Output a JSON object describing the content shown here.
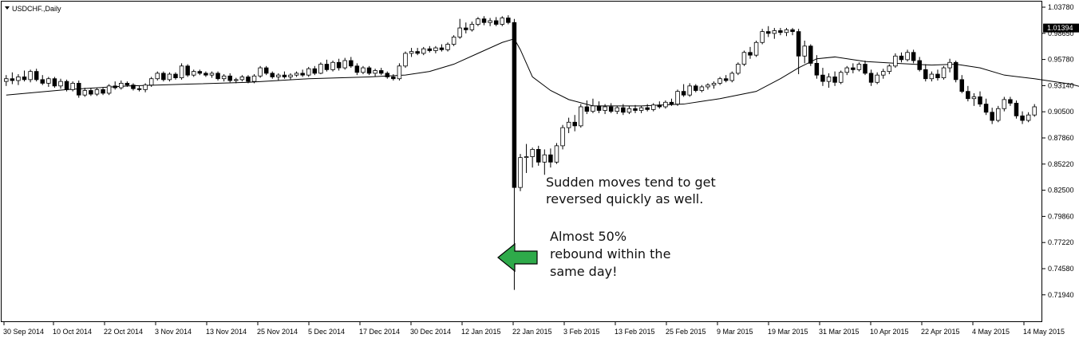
{
  "chart_data": {
    "type": "candlestick",
    "title": "USDCHF.,Daily",
    "y_ticks": [
      "1.03780",
      "0.98650",
      "0.95780",
      "0.93140",
      "0.90500",
      "0.87860",
      "0.85220",
      "0.82500",
      "0.79860",
      "0.77220",
      "0.74580",
      "0.71940"
    ],
    "current_price_label": "1.01394",
    "current_price": 1.01394,
    "x_ticks": [
      "30 Sep 2014",
      "10 Oct 2014",
      "22 Oct 2014",
      "3 Nov 2014",
      "13 Nov 2014",
      "25 Nov 2014",
      "5 Dec 2014",
      "17 Dec 2014",
      "30 Dec 2014",
      "12 Jan 2015",
      "22 Jan 2015",
      "3 Feb 2015",
      "13 Feb 2015",
      "25 Feb 2015",
      "9 Mar 2015",
      "19 Mar 2015",
      "31 Mar 2015",
      "10 Apr 2015",
      "22 Apr 2015",
      "4 May 2015",
      "14 May 2015"
    ],
    "ylim": [
      0.7194,
      1.0378
    ],
    "grid": false,
    "candles": [
      {
        "o": 0.955,
        "h": 0.962,
        "l": 0.95,
        "c": 0.958
      },
      {
        "o": 0.958,
        "h": 0.965,
        "l": 0.952,
        "c": 0.956
      },
      {
        "o": 0.956,
        "h": 0.963,
        "l": 0.951,
        "c": 0.96
      },
      {
        "o": 0.96,
        "h": 0.967,
        "l": 0.955,
        "c": 0.957
      },
      {
        "o": 0.957,
        "h": 0.968,
        "l": 0.954,
        "c": 0.966
      },
      {
        "o": 0.966,
        "h": 0.969,
        "l": 0.955,
        "c": 0.957
      },
      {
        "o": 0.957,
        "h": 0.962,
        "l": 0.951,
        "c": 0.953
      },
      {
        "o": 0.953,
        "h": 0.96,
        "l": 0.949,
        "c": 0.958
      },
      {
        "o": 0.958,
        "h": 0.96,
        "l": 0.948,
        "c": 0.95
      },
      {
        "o": 0.95,
        "h": 0.958,
        "l": 0.947,
        "c": 0.955
      },
      {
        "o": 0.955,
        "h": 0.957,
        "l": 0.944,
        "c": 0.946
      },
      {
        "o": 0.946,
        "h": 0.955,
        "l": 0.944,
        "c": 0.953
      },
      {
        "o": 0.953,
        "h": 0.956,
        "l": 0.937,
        "c": 0.94
      },
      {
        "o": 0.94,
        "h": 0.948,
        "l": 0.938,
        "c": 0.945
      },
      {
        "o": 0.945,
        "h": 0.948,
        "l": 0.939,
        "c": 0.941
      },
      {
        "o": 0.941,
        "h": 0.948,
        "l": 0.939,
        "c": 0.946
      },
      {
        "o": 0.946,
        "h": 0.948,
        "l": 0.94,
        "c": 0.942
      },
      {
        "o": 0.942,
        "h": 0.952,
        "l": 0.94,
        "c": 0.95
      },
      {
        "o": 0.95,
        "h": 0.955,
        "l": 0.946,
        "c": 0.948
      },
      {
        "o": 0.948,
        "h": 0.956,
        "l": 0.946,
        "c": 0.953
      },
      {
        "o": 0.953,
        "h": 0.955,
        "l": 0.949,
        "c": 0.951
      },
      {
        "o": 0.951,
        "h": 0.953,
        "l": 0.945,
        "c": 0.947
      },
      {
        "o": 0.947,
        "h": 0.95,
        "l": 0.944,
        "c": 0.946
      },
      {
        "o": 0.946,
        "h": 0.953,
        "l": 0.943,
        "c": 0.951
      },
      {
        "o": 0.951,
        "h": 0.96,
        "l": 0.949,
        "c": 0.958
      },
      {
        "o": 0.958,
        "h": 0.966,
        "l": 0.956,
        "c": 0.964
      },
      {
        "o": 0.964,
        "h": 0.966,
        "l": 0.955,
        "c": 0.957
      },
      {
        "o": 0.957,
        "h": 0.965,
        "l": 0.955,
        "c": 0.963
      },
      {
        "o": 0.963,
        "h": 0.965,
        "l": 0.957,
        "c": 0.959
      },
      {
        "o": 0.959,
        "h": 0.975,
        "l": 0.957,
        "c": 0.972
      },
      {
        "o": 0.972,
        "h": 0.974,
        "l": 0.96,
        "c": 0.962
      },
      {
        "o": 0.962,
        "h": 0.968,
        "l": 0.96,
        "c": 0.966
      },
      {
        "o": 0.966,
        "h": 0.968,
        "l": 0.962,
        "c": 0.964
      },
      {
        "o": 0.964,
        "h": 0.966,
        "l": 0.96,
        "c": 0.962
      },
      {
        "o": 0.962,
        "h": 0.966,
        "l": 0.959,
        "c": 0.964
      },
      {
        "o": 0.964,
        "h": 0.966,
        "l": 0.956,
        "c": 0.958
      },
      {
        "o": 0.958,
        "h": 0.963,
        "l": 0.955,
        "c": 0.961
      },
      {
        "o": 0.961,
        "h": 0.964,
        "l": 0.954,
        "c": 0.956
      },
      {
        "o": 0.956,
        "h": 0.959,
        "l": 0.953,
        "c": 0.957
      },
      {
        "o": 0.957,
        "h": 0.962,
        "l": 0.955,
        "c": 0.96
      },
      {
        "o": 0.96,
        "h": 0.962,
        "l": 0.953,
        "c": 0.955
      },
      {
        "o": 0.955,
        "h": 0.963,
        "l": 0.953,
        "c": 0.961
      },
      {
        "o": 0.961,
        "h": 0.972,
        "l": 0.959,
        "c": 0.97
      },
      {
        "o": 0.97,
        "h": 0.972,
        "l": 0.962,
        "c": 0.964
      },
      {
        "o": 0.964,
        "h": 0.966,
        "l": 0.958,
        "c": 0.96
      },
      {
        "o": 0.96,
        "h": 0.964,
        "l": 0.956,
        "c": 0.962
      },
      {
        "o": 0.962,
        "h": 0.966,
        "l": 0.958,
        "c": 0.96
      },
      {
        "o": 0.96,
        "h": 0.964,
        "l": 0.957,
        "c": 0.962
      },
      {
        "o": 0.962,
        "h": 0.966,
        "l": 0.96,
        "c": 0.964
      },
      {
        "o": 0.964,
        "h": 0.968,
        "l": 0.96,
        "c": 0.962
      },
      {
        "o": 0.962,
        "h": 0.971,
        "l": 0.96,
        "c": 0.969
      },
      {
        "o": 0.969,
        "h": 0.972,
        "l": 0.962,
        "c": 0.964
      },
      {
        "o": 0.964,
        "h": 0.976,
        "l": 0.963,
        "c": 0.974
      },
      {
        "o": 0.974,
        "h": 0.979,
        "l": 0.966,
        "c": 0.968
      },
      {
        "o": 0.968,
        "h": 0.978,
        "l": 0.966,
        "c": 0.976
      },
      {
        "o": 0.976,
        "h": 0.98,
        "l": 0.967,
        "c": 0.97
      },
      {
        "o": 0.97,
        "h": 0.981,
        "l": 0.968,
        "c": 0.978
      },
      {
        "o": 0.978,
        "h": 0.982,
        "l": 0.97,
        "c": 0.972
      },
      {
        "o": 0.972,
        "h": 0.975,
        "l": 0.962,
        "c": 0.965
      },
      {
        "o": 0.965,
        "h": 0.972,
        "l": 0.963,
        "c": 0.97
      },
      {
        "o": 0.97,
        "h": 0.972,
        "l": 0.962,
        "c": 0.964
      },
      {
        "o": 0.964,
        "h": 0.969,
        "l": 0.96,
        "c": 0.967
      },
      {
        "o": 0.967,
        "h": 0.97,
        "l": 0.962,
        "c": 0.964
      },
      {
        "o": 0.964,
        "h": 0.966,
        "l": 0.958,
        "c": 0.96
      },
      {
        "o": 0.96,
        "h": 0.963,
        "l": 0.956,
        "c": 0.958
      },
      {
        "o": 0.958,
        "h": 0.975,
        "l": 0.956,
        "c": 0.972
      },
      {
        "o": 0.972,
        "h": 0.988,
        "l": 0.97,
        "c": 0.986
      },
      {
        "o": 0.986,
        "h": 0.992,
        "l": 0.982,
        "c": 0.988
      },
      {
        "o": 0.988,
        "h": 0.992,
        "l": 0.984,
        "c": 0.986
      },
      {
        "o": 0.986,
        "h": 0.993,
        "l": 0.984,
        "c": 0.991
      },
      {
        "o": 0.991,
        "h": 0.994,
        "l": 0.987,
        "c": 0.989
      },
      {
        "o": 0.989,
        "h": 0.994,
        "l": 0.986,
        "c": 0.992
      },
      {
        "o": 0.992,
        "h": 0.996,
        "l": 0.988,
        "c": 0.99
      },
      {
        "o": 0.99,
        "h": 0.998,
        "l": 0.988,
        "c": 0.996
      },
      {
        "o": 0.996,
        "h": 1.006,
        "l": 0.994,
        "c": 1.004
      },
      {
        "o": 1.004,
        "h": 1.024,
        "l": 1.002,
        "c": 1.014
      },
      {
        "o": 1.014,
        "h": 1.02,
        "l": 1.008,
        "c": 1.012
      },
      {
        "o": 1.012,
        "h": 1.021,
        "l": 1.01,
        "c": 1.018
      },
      {
        "o": 1.018,
        "h": 1.026,
        "l": 1.016,
        "c": 1.024
      },
      {
        "o": 1.024,
        "h": 1.027,
        "l": 1.017,
        "c": 1.02
      },
      {
        "o": 1.02,
        "h": 1.025,
        "l": 1.016,
        "c": 1.022
      },
      {
        "o": 1.022,
        "h": 1.026,
        "l": 1.016,
        "c": 1.018
      },
      {
        "o": 1.018,
        "h": 1.027,
        "l": 1.016,
        "c": 1.025
      },
      {
        "o": 1.025,
        "h": 1.028,
        "l": 1.018,
        "c": 1.02
      },
      {
        "o": 1.02,
        "h": 1.024,
        "l": 0.725,
        "c": 0.838
      },
      {
        "o": 0.838,
        "h": 0.875,
        "l": 0.834,
        "c": 0.871
      },
      {
        "o": 0.871,
        "h": 0.886,
        "l": 0.854,
        "c": 0.872
      },
      {
        "o": 0.872,
        "h": 0.882,
        "l": 0.86,
        "c": 0.88
      },
      {
        "o": 0.88,
        "h": 0.884,
        "l": 0.862,
        "c": 0.866
      },
      {
        "o": 0.866,
        "h": 0.88,
        "l": 0.852,
        "c": 0.874
      },
      {
        "o": 0.874,
        "h": 0.881,
        "l": 0.86,
        "c": 0.866
      },
      {
        "o": 0.866,
        "h": 0.887,
        "l": 0.864,
        "c": 0.884
      },
      {
        "o": 0.884,
        "h": 0.907,
        "l": 0.88,
        "c": 0.904
      },
      {
        "o": 0.904,
        "h": 0.915,
        "l": 0.898,
        "c": 0.91
      },
      {
        "o": 0.91,
        "h": 0.918,
        "l": 0.9,
        "c": 0.906
      },
      {
        "o": 0.906,
        "h": 0.93,
        "l": 0.904,
        "c": 0.927
      },
      {
        "o": 0.927,
        "h": 0.934,
        "l": 0.919,
        "c": 0.922
      },
      {
        "o": 0.922,
        "h": 0.936,
        "l": 0.92,
        "c": 0.928
      },
      {
        "o": 0.928,
        "h": 0.933,
        "l": 0.92,
        "c": 0.923
      },
      {
        "o": 0.923,
        "h": 0.93,
        "l": 0.919,
        "c": 0.927
      },
      {
        "o": 0.927,
        "h": 0.931,
        "l": 0.92,
        "c": 0.922
      },
      {
        "o": 0.922,
        "h": 0.928,
        "l": 0.919,
        "c": 0.926
      },
      {
        "o": 0.926,
        "h": 0.93,
        "l": 0.918,
        "c": 0.921
      },
      {
        "o": 0.921,
        "h": 0.928,
        "l": 0.919,
        "c": 0.925
      },
      {
        "o": 0.925,
        "h": 0.929,
        "l": 0.92,
        "c": 0.923
      },
      {
        "o": 0.923,
        "h": 0.928,
        "l": 0.92,
        "c": 0.926
      },
      {
        "o": 0.926,
        "h": 0.93,
        "l": 0.922,
        "c": 0.924
      },
      {
        "o": 0.924,
        "h": 0.931,
        "l": 0.922,
        "c": 0.929
      },
      {
        "o": 0.929,
        "h": 0.933,
        "l": 0.925,
        "c": 0.927
      },
      {
        "o": 0.927,
        "h": 0.934,
        "l": 0.925,
        "c": 0.932
      },
      {
        "o": 0.932,
        "h": 0.936,
        "l": 0.928,
        "c": 0.93
      },
      {
        "o": 0.93,
        "h": 0.946,
        "l": 0.928,
        "c": 0.944
      },
      {
        "o": 0.944,
        "h": 0.952,
        "l": 0.938,
        "c": 0.94
      },
      {
        "o": 0.94,
        "h": 0.953,
        "l": 0.938,
        "c": 0.95
      },
      {
        "o": 0.95,
        "h": 0.952,
        "l": 0.943,
        "c": 0.945
      },
      {
        "o": 0.945,
        "h": 0.951,
        "l": 0.943,
        "c": 0.949
      },
      {
        "o": 0.949,
        "h": 0.953,
        "l": 0.946,
        "c": 0.951
      },
      {
        "o": 0.951,
        "h": 0.955,
        "l": 0.947,
        "c": 0.953
      },
      {
        "o": 0.953,
        "h": 0.96,
        "l": 0.951,
        "c": 0.958
      },
      {
        "o": 0.958,
        "h": 0.962,
        "l": 0.954,
        "c": 0.956
      },
      {
        "o": 0.956,
        "h": 0.966,
        "l": 0.954,
        "c": 0.964
      },
      {
        "o": 0.964,
        "h": 0.976,
        "l": 0.962,
        "c": 0.974
      },
      {
        "o": 0.974,
        "h": 0.989,
        "l": 0.972,
        "c": 0.987
      },
      {
        "o": 0.987,
        "h": 0.993,
        "l": 0.98,
        "c": 0.984
      },
      {
        "o": 0.984,
        "h": 1.0,
        "l": 0.982,
        "c": 0.998
      },
      {
        "o": 0.998,
        "h": 1.013,
        "l": 0.996,
        "c": 1.01
      },
      {
        "o": 1.01,
        "h": 1.016,
        "l": 1.004,
        "c": 1.008
      },
      {
        "o": 1.008,
        "h": 1.014,
        "l": 1.002,
        "c": 1.011
      },
      {
        "o": 1.011,
        "h": 1.014,
        "l": 1.006,
        "c": 1.009
      },
      {
        "o": 1.009,
        "h": 1.014,
        "l": 1.005,
        "c": 1.012
      },
      {
        "o": 1.012,
        "h": 1.014,
        "l": 1.006,
        "c": 1.01
      },
      {
        "o": 1.01,
        "h": 1.013,
        "l": 0.963,
        "c": 0.983
      },
      {
        "o": 0.983,
        "h": 1.0,
        "l": 0.975,
        "c": 0.994
      },
      {
        "o": 0.994,
        "h": 0.996,
        "l": 0.972,
        "c": 0.975
      },
      {
        "o": 0.975,
        "h": 0.984,
        "l": 0.958,
        "c": 0.962
      },
      {
        "o": 0.962,
        "h": 0.97,
        "l": 0.95,
        "c": 0.955
      },
      {
        "o": 0.955,
        "h": 0.964,
        "l": 0.948,
        "c": 0.96
      },
      {
        "o": 0.96,
        "h": 0.966,
        "l": 0.95,
        "c": 0.954
      },
      {
        "o": 0.954,
        "h": 0.967,
        "l": 0.952,
        "c": 0.965
      },
      {
        "o": 0.965,
        "h": 0.972,
        "l": 0.962,
        "c": 0.97
      },
      {
        "o": 0.97,
        "h": 0.975,
        "l": 0.964,
        "c": 0.968
      },
      {
        "o": 0.968,
        "h": 0.976,
        "l": 0.966,
        "c": 0.974
      },
      {
        "o": 0.974,
        "h": 0.978,
        "l": 0.962,
        "c": 0.964
      },
      {
        "o": 0.964,
        "h": 0.968,
        "l": 0.95,
        "c": 0.954
      },
      {
        "o": 0.954,
        "h": 0.965,
        "l": 0.952,
        "c": 0.962
      },
      {
        "o": 0.962,
        "h": 0.969,
        "l": 0.958,
        "c": 0.966
      },
      {
        "o": 0.966,
        "h": 0.974,
        "l": 0.963,
        "c": 0.972
      },
      {
        "o": 0.972,
        "h": 0.986,
        "l": 0.97,
        "c": 0.983
      },
      {
        "o": 0.983,
        "h": 0.987,
        "l": 0.976,
        "c": 0.979
      },
      {
        "o": 0.979,
        "h": 0.99,
        "l": 0.977,
        "c": 0.987
      },
      {
        "o": 0.987,
        "h": 0.99,
        "l": 0.975,
        "c": 0.978
      },
      {
        "o": 0.978,
        "h": 0.982,
        "l": 0.966,
        "c": 0.968
      },
      {
        "o": 0.968,
        "h": 0.974,
        "l": 0.955,
        "c": 0.958
      },
      {
        "o": 0.958,
        "h": 0.966,
        "l": 0.955,
        "c": 0.963
      },
      {
        "o": 0.963,
        "h": 0.968,
        "l": 0.956,
        "c": 0.959
      },
      {
        "o": 0.959,
        "h": 0.972,
        "l": 0.957,
        "c": 0.97
      },
      {
        "o": 0.97,
        "h": 0.98,
        "l": 0.965,
        "c": 0.976
      },
      {
        "o": 0.976,
        "h": 0.978,
        "l": 0.954,
        "c": 0.957
      },
      {
        "o": 0.957,
        "h": 0.962,
        "l": 0.942,
        "c": 0.944
      },
      {
        "o": 0.944,
        "h": 0.95,
        "l": 0.933,
        "c": 0.936
      },
      {
        "o": 0.936,
        "h": 0.942,
        "l": 0.928,
        "c": 0.938
      },
      {
        "o": 0.938,
        "h": 0.944,
        "l": 0.927,
        "c": 0.93
      },
      {
        "o": 0.93,
        "h": 0.936,
        "l": 0.918,
        "c": 0.921
      },
      {
        "o": 0.921,
        "h": 0.926,
        "l": 0.908,
        "c": 0.912
      },
      {
        "o": 0.912,
        "h": 0.928,
        "l": 0.91,
        "c": 0.925
      },
      {
        "o": 0.925,
        "h": 0.938,
        "l": 0.922,
        "c": 0.935
      },
      {
        "o": 0.935,
        "h": 0.938,
        "l": 0.928,
        "c": 0.931
      },
      {
        "o": 0.931,
        "h": 0.934,
        "l": 0.914,
        "c": 0.917
      },
      {
        "o": 0.917,
        "h": 0.922,
        "l": 0.908,
        "c": 0.912
      },
      {
        "o": 0.912,
        "h": 0.921,
        "l": 0.91,
        "c": 0.918
      },
      {
        "o": 0.918,
        "h": 0.93,
        "l": 0.916,
        "c": 0.927
      }
    ],
    "ma": [
      [
        0,
        0.94
      ],
      [
        10,
        0.946
      ],
      [
        20,
        0.95
      ],
      [
        30,
        0.952
      ],
      [
        40,
        0.954
      ],
      [
        50,
        0.958
      ],
      [
        60,
        0.96
      ],
      [
        66,
        0.962
      ],
      [
        70,
        0.966
      ],
      [
        74,
        0.974
      ],
      [
        78,
        0.986
      ],
      [
        82,
        0.998
      ],
      [
        84,
        1.002
      ],
      [
        85,
        0.99
      ],
      [
        87,
        0.96
      ],
      [
        90,
        0.945
      ],
      [
        93,
        0.935
      ],
      [
        97,
        0.928
      ],
      [
        105,
        0.928
      ],
      [
        112,
        0.93
      ],
      [
        118,
        0.936
      ],
      [
        124,
        0.944
      ],
      [
        128,
        0.958
      ],
      [
        131,
        0.97
      ],
      [
        134,
        0.98
      ],
      [
        137,
        0.982
      ],
      [
        142,
        0.977
      ],
      [
        147,
        0.975
      ],
      [
        153,
        0.973
      ],
      [
        157,
        0.974
      ],
      [
        161,
        0.97
      ],
      [
        165,
        0.962
      ],
      [
        170,
        0.958
      ],
      [
        176,
        0.952
      ],
      [
        180,
        0.945
      ],
      [
        185,
        0.937
      ],
      [
        188,
        0.934
      ]
    ],
    "annotations": [
      {
        "lines": [
          "Sudden moves tend to get",
          "reversed quickly as well."
        ]
      },
      {
        "lines": [
          "Almost 50%",
          "rebound within the",
          "same day!"
        ]
      }
    ],
    "arrow_color": "#2eaa4a",
    "bull_color": "#ffffff",
    "bear_color": "#000000"
  }
}
